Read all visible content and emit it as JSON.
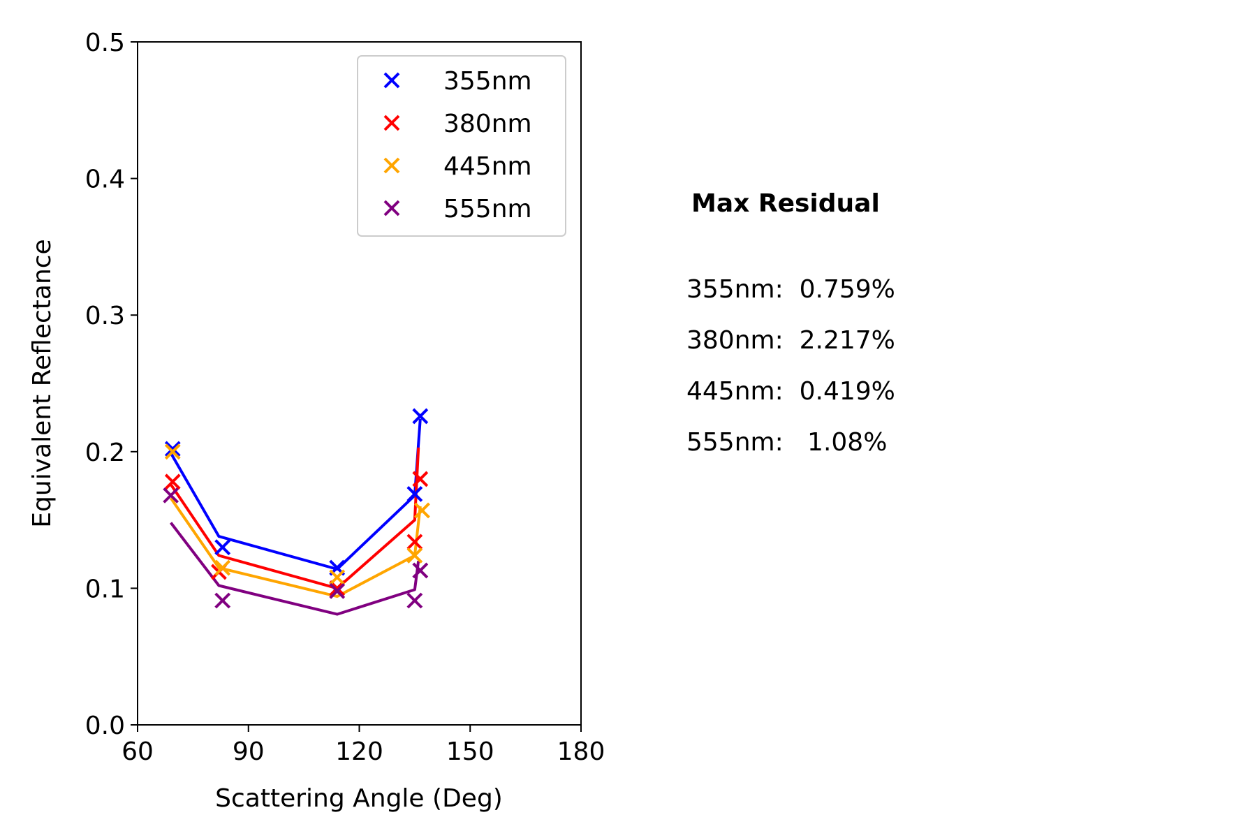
{
  "chart_data": {
    "type": "scatter",
    "xlabel": "Scattering Angle (Deg)",
    "ylabel": "Equivalent Reflectance",
    "xlim": [
      60,
      180
    ],
    "ylim": [
      0,
      0.5
    ],
    "xticks": [
      60,
      90,
      120,
      150,
      180
    ],
    "yticks": [
      0.0,
      0.1,
      0.2,
      0.3,
      0.4,
      0.5
    ],
    "ytick_labels": [
      "0.0",
      "0.1",
      "0.2",
      "0.3",
      "0.4",
      "0.5"
    ],
    "grid": false,
    "legend_position": "top-right",
    "series": [
      {
        "name": "355nm",
        "color": "#0000ff",
        "points": {
          "x": [
            69.5,
            83,
            114,
            135,
            136.5
          ],
          "y": [
            0.202,
            0.13,
            0.115,
            0.169,
            0.226
          ]
        },
        "fit_line": {
          "x": [
            69,
            82,
            114,
            135,
            136.5
          ],
          "y": [
            0.199,
            0.138,
            0.114,
            0.168,
            0.224
          ]
        }
      },
      {
        "name": "380nm",
        "color": "#ff0000",
        "points": {
          "x": [
            69.5,
            82,
            114,
            135,
            136.5
          ],
          "y": [
            0.178,
            0.112,
            0.1,
            0.134,
            0.18
          ]
        },
        "fit_line": {
          "x": [
            69,
            82,
            114,
            135,
            136
          ],
          "y": [
            0.176,
            0.124,
            0.1,
            0.15,
            0.203
          ]
        }
      },
      {
        "name": "445nm",
        "color": "#ffa500",
        "points": {
          "x": [
            69.5,
            83,
            114,
            135,
            137
          ],
          "y": [
            0.2,
            0.115,
            0.108,
            0.124,
            0.157
          ]
        },
        "fit_line": {
          "x": [
            69,
            82,
            114,
            135,
            136.5
          ],
          "y": [
            0.166,
            0.115,
            0.094,
            0.124,
            0.16
          ]
        }
      },
      {
        "name": "555nm",
        "color": "#800080",
        "points": {
          "x": [
            69,
            83,
            114,
            135,
            136.5
          ],
          "y": [
            0.168,
            0.091,
            0.098,
            0.091,
            0.113
          ]
        },
        "fit_line": {
          "x": [
            69,
            82,
            114,
            135,
            136
          ],
          "y": [
            0.148,
            0.102,
            0.081,
            0.099,
            0.12
          ]
        }
      }
    ]
  },
  "residuals": {
    "title": "Max Residual",
    "lines": [
      "355nm:  0.759%",
      "380nm:  2.217%",
      "445nm:  0.419%",
      "555nm:   1.08%"
    ]
  }
}
